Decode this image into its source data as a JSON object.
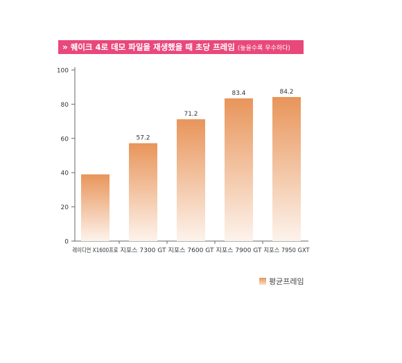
{
  "header": {
    "title": "퀘이크 4로 데모 파일을 재생했을 때 초당 프레임",
    "subtitle": "(높을수록 우수하다)"
  },
  "colors": {
    "banner": "#e9487c",
    "bar_top": "#e8955a",
    "bar_bottom": "#fdf3ec",
    "axis": "#666666"
  },
  "chart_data": {
    "type": "bar",
    "title": "퀘이크 4로 데모 파일을 재생했을 때 초당 프레임",
    "categories": [
      "레이디언 X1600프로",
      "지포스 7300 GT",
      "지포스 7600 GT",
      "지포스 7900 GT",
      "지포스 7950 GXT"
    ],
    "series": [
      {
        "name": "평균프레임",
        "values": [
          39,
          57.2,
          71.2,
          83.4,
          84.2
        ],
        "data_labels": [
          "",
          "57.2",
          "71.2",
          "83.4",
          "84.2"
        ]
      }
    ],
    "ylim": [
      0,
      100
    ],
    "yticks": [
      0,
      20,
      40,
      60,
      80,
      100
    ],
    "grid": false,
    "legend": "bottom-right"
  },
  "legend": {
    "label": "평균프레임"
  }
}
